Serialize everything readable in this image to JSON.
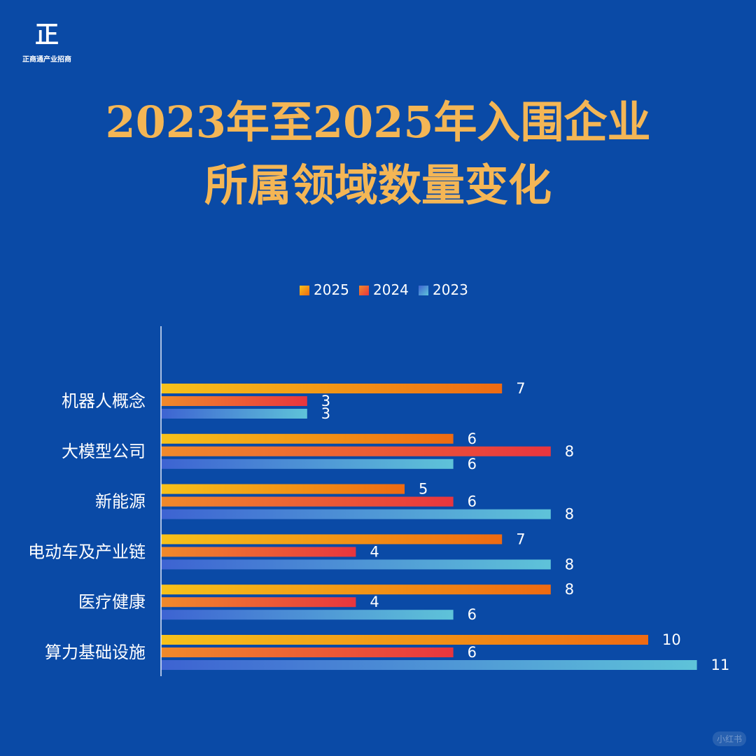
{
  "brand": {
    "mark": "正",
    "name": "正商通产业招商"
  },
  "title": {
    "line1": "2023年至2025年入围企业",
    "line2": "所属领域数量变化"
  },
  "watermark": "小红书",
  "colors": {
    "background": "#0a4aa6",
    "title": "#f4b655",
    "series_2025_start": "#f7c21a",
    "series_2025_end": "#ee6a12",
    "series_2024_start": "#f08a2a",
    "series_2024_end": "#e8353f",
    "series_2023_start": "#3d63d2",
    "series_2023_end": "#5ec3d9",
    "axis": "#dfe8f7",
    "label": "#ffffff"
  },
  "chart_data": {
    "type": "bar",
    "orientation": "horizontal",
    "categories": [
      "机器人概念",
      "大模型公司",
      "新能源",
      "电动车及产业链",
      "医疗健康",
      "算力基础设施"
    ],
    "series": [
      {
        "name": "2025",
        "values": [
          7,
          6,
          5,
          7,
          8,
          10
        ]
      },
      {
        "name": "2024",
        "values": [
          3,
          8,
          6,
          4,
          4,
          6
        ]
      },
      {
        "name": "2023",
        "values": [
          3,
          6,
          8,
          8,
          6,
          11
        ]
      }
    ],
    "xlim": [
      0,
      11
    ],
    "legend": "top-center",
    "grid": false,
    "data_labels": true
  }
}
